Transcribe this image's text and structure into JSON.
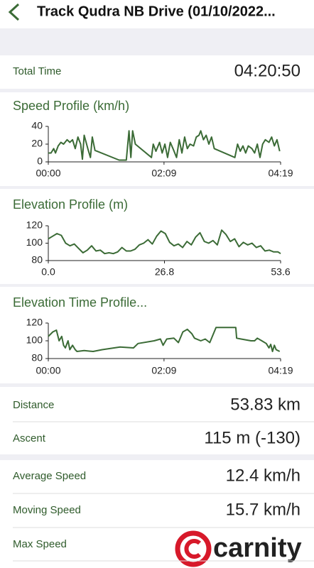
{
  "header": {
    "title": "Track Qudra NB Drive  (01/10/2022..."
  },
  "total_time": {
    "label": "Total Time",
    "value": "04:20:50"
  },
  "chart_data": [
    {
      "type": "line",
      "title": "Speed Profile (km/h)",
      "color": "#3b6b36",
      "x": [
        0,
        3,
        6,
        8,
        11,
        14,
        17,
        21,
        24,
        27,
        30,
        33,
        36,
        38,
        40,
        44,
        47,
        49,
        52,
        79,
        87,
        90,
        92,
        94,
        97,
        115,
        117,
        120,
        124,
        127,
        130,
        133,
        136,
        139,
        143,
        146,
        149,
        152,
        155,
        158,
        162,
        165,
        168,
        170,
        173,
        176,
        179,
        182,
        185,
        208,
        211,
        214,
        217,
        220,
        223,
        227,
        230,
        233,
        236,
        239,
        242,
        246,
        249,
        252,
        255,
        258
      ],
      "series": [
        {
          "values": [
            10,
            10,
            15,
            10,
            18,
            22,
            20,
            25,
            22,
            25,
            15,
            28,
            20,
            3,
            30,
            15,
            5,
            28,
            13,
            2,
            2,
            35,
            5,
            35,
            20,
            5,
            20,
            12,
            22,
            10,
            20,
            5,
            22,
            15,
            5,
            25,
            10,
            28,
            15,
            20,
            18,
            28,
            30,
            35,
            25,
            30,
            20,
            28,
            15,
            5,
            20,
            12,
            18,
            10,
            18,
            15,
            10,
            20,
            5,
            20,
            25,
            22,
            28,
            18,
            25,
            12
          ]
        }
      ],
      "xlim": [
        0,
        259
      ],
      "ylim": [
        0,
        40
      ],
      "xticks": [
        {
          "value": 0,
          "label": "00:00"
        },
        {
          "value": 129,
          "label": "02:09"
        },
        {
          "value": 259,
          "label": "04:19"
        }
      ],
      "yticks": [
        0,
        20,
        40
      ]
    },
    {
      "type": "line",
      "title": "Elevation Profile (m)",
      "color": "#3b6b36",
      "x": [
        0,
        1,
        2,
        3,
        4,
        5,
        6,
        7,
        8,
        9,
        10,
        11,
        12,
        13,
        14,
        15,
        16,
        17,
        18,
        19,
        20,
        21,
        22,
        23,
        24,
        25,
        26,
        27,
        28,
        29,
        30,
        31,
        32,
        33,
        34,
        35,
        36,
        37,
        38,
        39,
        40,
        41,
        42,
        43,
        44,
        45,
        46,
        47,
        48,
        49,
        50,
        51,
        52,
        53,
        53.6
      ],
      "series": [
        {
          "values": [
            105,
            108,
            111,
            109,
            100,
            97,
            99,
            94,
            89,
            92,
            97,
            91,
            92,
            88,
            89,
            88,
            90,
            95,
            91,
            91,
            93,
            98,
            100,
            104,
            99,
            108,
            114,
            111,
            101,
            97,
            99,
            95,
            102,
            98,
            107,
            112,
            102,
            100,
            103,
            98,
            115,
            110,
            102,
            105,
            96,
            101,
            98,
            100,
            95,
            97,
            91,
            92,
            90,
            90,
            88
          ]
        }
      ],
      "xlim": [
        0,
        53.6
      ],
      "ylim": [
        80,
        120
      ],
      "xticks": [
        {
          "value": 0,
          "label": "0.0"
        },
        26.8,
        53.6
      ],
      "yticks": [
        80,
        100,
        120
      ]
    },
    {
      "type": "line",
      "title": "Elevation Time Profile...",
      "color": "#3b6b36",
      "x": [
        0,
        5,
        9,
        12,
        15,
        17,
        19,
        22,
        24,
        27,
        30,
        32,
        40,
        50,
        60,
        80,
        95,
        100,
        118,
        125,
        128,
        132,
        140,
        145,
        150,
        155,
        160,
        163,
        170,
        175,
        180,
        187,
        195,
        209,
        210,
        215,
        226,
        230,
        233,
        238,
        243,
        246,
        248,
        250,
        252,
        254,
        258
      ],
      "series": [
        {
          "values": [
            105,
            110,
            112,
            100,
            105,
            95,
            92,
            100,
            90,
            95,
            90,
            88,
            89,
            88,
            90,
            93,
            92,
            97,
            100,
            102,
            95,
            102,
            103,
            98,
            110,
            113,
            108,
            103,
            100,
            102,
            98,
            115,
            115,
            115,
            103,
            102,
            100,
            100,
            103,
            100,
            97,
            92,
            96,
            88,
            95,
            90,
            88
          ]
        }
      ],
      "xlim": [
        0,
        259
      ],
      "ylim": [
        80,
        120
      ],
      "xticks": [
        {
          "value": 0,
          "label": "00:00"
        },
        {
          "value": 129,
          "label": "02:09"
        },
        {
          "value": 259,
          "label": "04:19"
        }
      ],
      "yticks": [
        80,
        100,
        120
      ]
    }
  ],
  "stats": [
    {
      "label": "Distance",
      "value": "53.83 km"
    },
    {
      "label": "Ascent",
      "value": "115 m (-130)"
    },
    {
      "label": "Average Speed",
      "value": "12.4 km/h"
    },
    {
      "label": "Moving Speed",
      "value": "15.7 km/h"
    },
    {
      "label": "Max Speed"
    }
  ],
  "watermark": "carnity"
}
